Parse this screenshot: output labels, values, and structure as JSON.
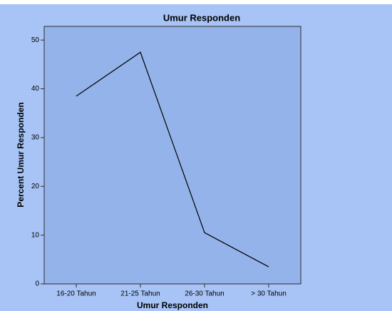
{
  "chart_data": {
    "type": "line",
    "title": "Umur Responden",
    "x_label": "Umur Responden",
    "y_label": "Percent Umur Responden",
    "categories": [
      "16-20 Tahun",
      "21-25 Tahun",
      "26-30 Tahun",
      "> 30 Tahun"
    ],
    "values": [
      38.5,
      47.5,
      10.5,
      3.5
    ],
    "color": "#000000",
    "ylim": [
      0,
      52.8
    ],
    "yticks": [
      0,
      10,
      20,
      30,
      40,
      50
    ],
    "grid": false
  }
}
